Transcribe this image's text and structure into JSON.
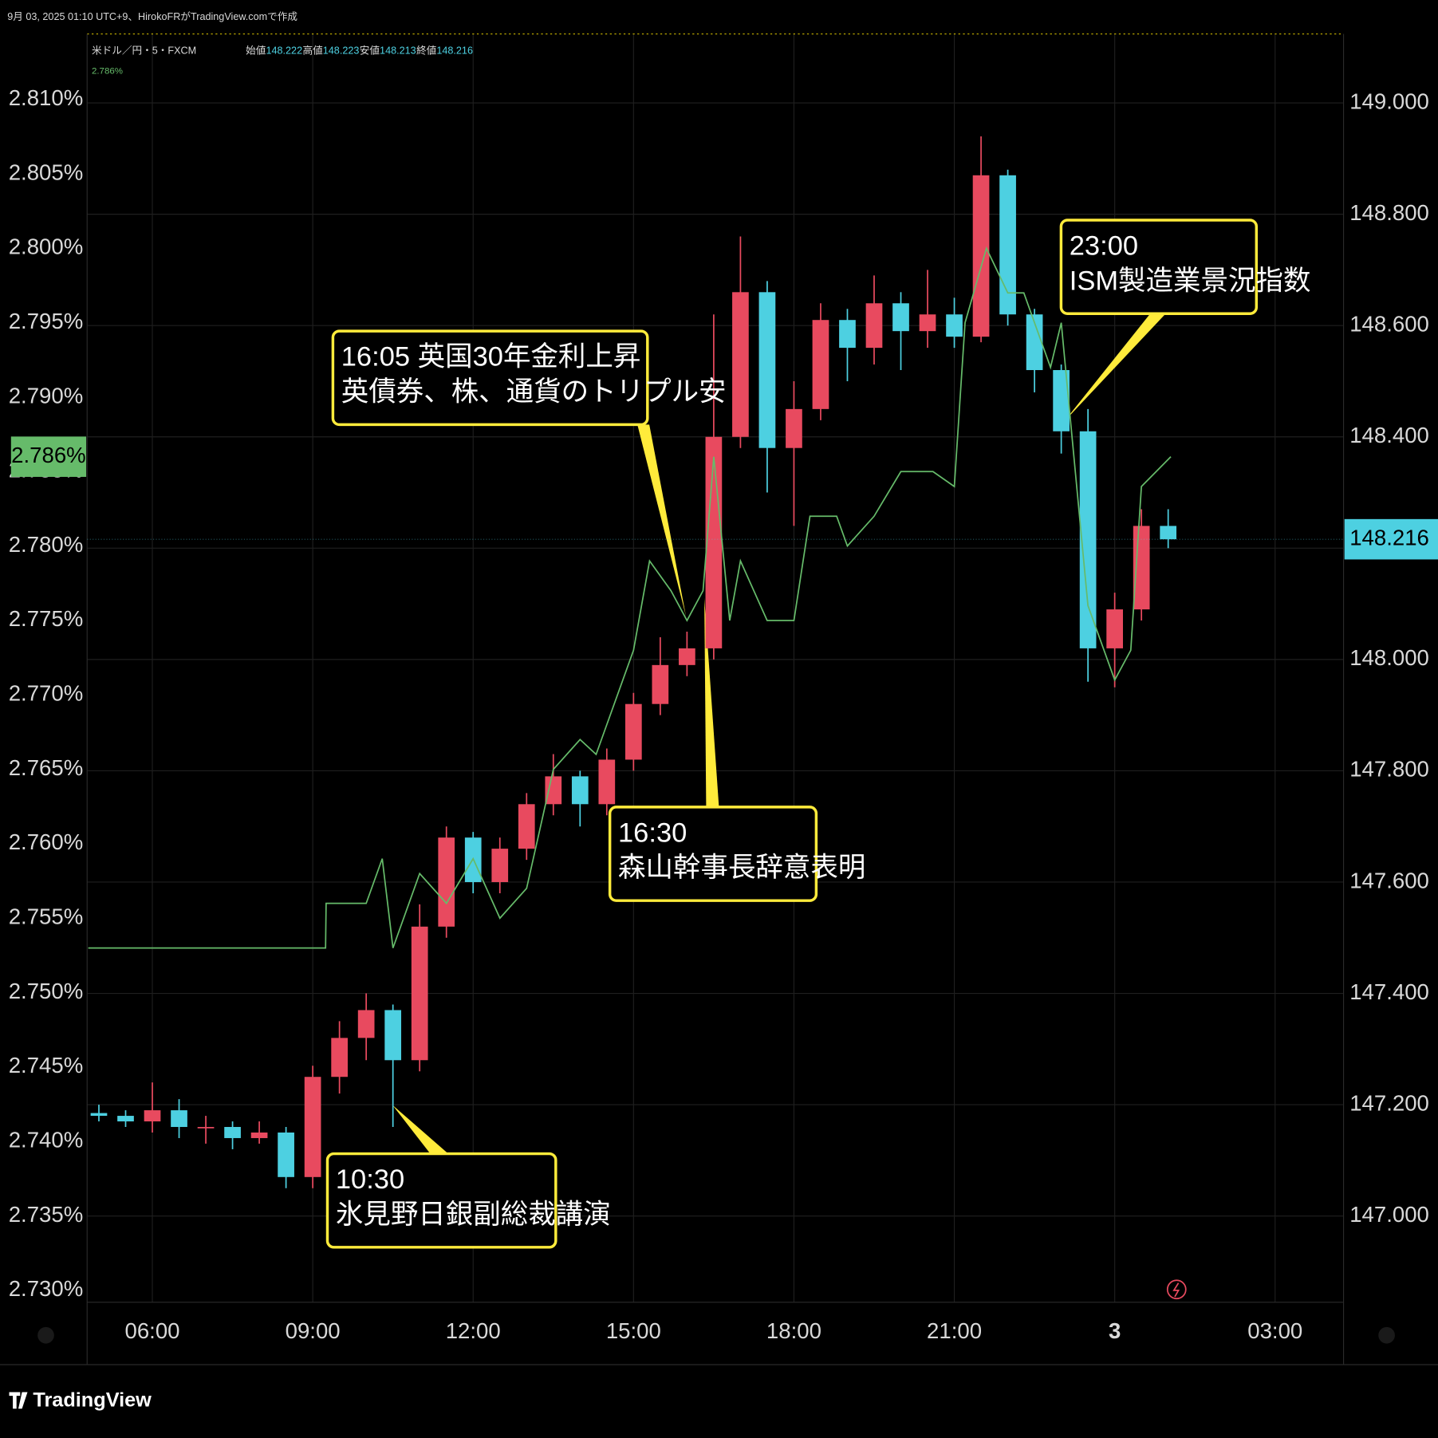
{
  "chart_data": {
    "type": "candlestick",
    "watermark": "9月 03, 2025 01:10 UTC+9、HirokoFRがTradingView.comで作成",
    "ohlc_legend": [
      {
        "label": "始値",
        "value": 148.222
      },
      {
        "label": "高値",
        "value": 148.223
      },
      {
        "label": "安値",
        "value": 148.213
      },
      {
        "label": "終値",
        "value": 148.216
      }
    ],
    "brand": "TradingView",
    "xlim": [
      4.78,
      28.28
    ],
    "xticks": [
      {
        "value": 6,
        "label": "06:00"
      },
      {
        "value": 9,
        "label": "09:00"
      },
      {
        "value": 12,
        "label": "12:00"
      },
      {
        "value": 15,
        "label": "15:00"
      },
      {
        "value": 18,
        "label": "18:00"
      },
      {
        "value": 21,
        "label": "21:00"
      },
      {
        "value": 24,
        "label": "3"
      },
      {
        "value": 27,
        "label": "03:00"
      }
    ],
    "ylim": [
      2.7292,
      2.8144
    ],
    "yticks": [
      {
        "value": 2.73,
        "label": "2.730%"
      },
      {
        "value": 2.735,
        "label": "2.735%"
      },
      {
        "value": 2.74,
        "label": "2.740%"
      },
      {
        "value": 2.745,
        "label": "2.745%"
      },
      {
        "value": 2.75,
        "label": "2.750%"
      },
      {
        "value": 2.755,
        "label": "2.755%"
      },
      {
        "value": 2.76,
        "label": "2.760%"
      },
      {
        "value": 2.765,
        "label": "2.765%"
      },
      {
        "value": 2.77,
        "label": "2.770%"
      },
      {
        "value": 2.775,
        "label": "2.775%"
      },
      {
        "value": 2.78,
        "label": "2.780%"
      },
      {
        "value": 2.785,
        "label": "2.785%"
      },
      {
        "value": 2.79,
        "label": "2.790%"
      },
      {
        "value": 2.795,
        "label": "2.795%"
      },
      {
        "value": 2.8,
        "label": "2.800%"
      },
      {
        "value": 2.805,
        "label": "2.805%"
      },
      {
        "value": 2.81,
        "label": "2.810%"
      }
    ],
    "y2lim": [
      146.845,
      149.124
    ],
    "y2ticks": [
      {
        "value": 147,
        "label": "147.000"
      },
      {
        "value": 147.2,
        "label": "147.200"
      },
      {
        "value": 147.4,
        "label": "147.400"
      },
      {
        "value": 147.6,
        "label": "147.600"
      },
      {
        "value": 147.8,
        "label": "147.800"
      },
      {
        "value": 148,
        "label": "148.000"
      },
      {
        "value": 148.2,
        "label": "148.200"
      },
      {
        "value": 148.4,
        "label": "148.400"
      },
      {
        "value": 148.6,
        "label": "148.600"
      },
      {
        "value": 148.8,
        "label": "148.800"
      },
      {
        "value": 149,
        "label": "149.000"
      }
    ],
    "grid": true,
    "series": [
      {
        "name": "米ドル／円・5・FXCM",
        "type": "candlestick",
        "axis": "y2",
        "up_color": "#e84a5f",
        "down_color": "#4dd0e1",
        "x": [
          5.0,
          5.5,
          6.0,
          6.5,
          7.0,
          7.5,
          8.0,
          8.5,
          9.0,
          9.5,
          10.0,
          10.5,
          11.0,
          11.5,
          12.0,
          12.5,
          13.0,
          13.5,
          14.0,
          14.5,
          15.0,
          15.5,
          16.0,
          16.5,
          17.0,
          17.5,
          18.0,
          18.5,
          19.0,
          19.5,
          20.0,
          20.5,
          21.0,
          21.5,
          22.0,
          22.5,
          23.0,
          23.5,
          24.0,
          24.5,
          25.0
        ],
        "open": [
          147.185,
          147.18,
          147.17,
          147.19,
          147.16,
          147.16,
          147.14,
          147.15,
          147.07,
          147.25,
          147.32,
          147.37,
          147.28,
          147.52,
          147.68,
          147.6,
          147.66,
          147.74,
          147.79,
          147.74,
          147.82,
          147.92,
          147.99,
          148.02,
          148.4,
          148.66,
          148.38,
          148.45,
          148.61,
          148.56,
          148.64,
          148.59,
          148.62,
          148.58,
          148.87,
          148.62,
          148.52,
          148.41,
          148.02,
          148.09,
          148.24
        ],
        "high": [
          147.2,
          147.19,
          147.24,
          147.21,
          147.18,
          147.17,
          147.17,
          147.16,
          147.27,
          147.35,
          147.4,
          147.38,
          147.56,
          147.7,
          147.69,
          147.68,
          147.76,
          147.83,
          147.8,
          147.84,
          147.94,
          148.04,
          148.05,
          148.62,
          148.76,
          148.68,
          148.5,
          148.64,
          148.63,
          148.69,
          148.66,
          148.7,
          148.65,
          148.94,
          148.88,
          148.63,
          148.53,
          148.45,
          148.12,
          148.27,
          148.27
        ],
        "low": [
          147.17,
          147.16,
          147.15,
          147.14,
          147.13,
          147.12,
          147.13,
          147.05,
          147.05,
          147.22,
          147.28,
          147.16,
          147.26,
          147.5,
          147.58,
          147.58,
          147.64,
          147.72,
          147.7,
          147.72,
          147.8,
          147.9,
          147.97,
          148.0,
          148.38,
          148.3,
          148.24,
          148.43,
          148.5,
          148.53,
          148.52,
          148.56,
          148.56,
          148.57,
          148.6,
          148.48,
          148.37,
          147.96,
          147.95,
          148.07,
          148.2
        ],
        "close": [
          147.18,
          147.17,
          147.19,
          147.16,
          147.16,
          147.14,
          147.15,
          147.07,
          147.25,
          147.32,
          147.37,
          147.28,
          147.52,
          147.68,
          147.6,
          147.66,
          147.74,
          147.79,
          147.74,
          147.82,
          147.92,
          147.99,
          148.02,
          148.4,
          148.66,
          148.38,
          148.45,
          148.61,
          148.56,
          148.64,
          148.59,
          148.62,
          148.58,
          148.87,
          148.62,
          148.52,
          148.41,
          148.02,
          148.09,
          148.24,
          148.216
        ],
        "last_value": 148.216,
        "last_value_label": "148.216"
      },
      {
        "type": "line",
        "axis": "y",
        "color": "#66bb6a",
        "x": [
          4.8,
          9.24,
          9.25,
          10.0,
          10.3,
          10.5,
          11.0,
          11.5,
          12.0,
          12.5,
          13.0,
          13.5,
          14.0,
          14.3,
          15.0,
          15.3,
          15.7,
          16.0,
          16.3,
          16.5,
          16.8,
          17.0,
          17.5,
          18.0,
          18.3,
          18.8,
          19.0,
          19.5,
          20.0,
          20.6,
          21.0,
          21.2,
          21.6,
          22.0,
          22.3,
          22.8,
          23.0,
          23.5,
          24.0,
          24.3,
          24.5,
          25.05
        ],
        "values": [
          2.753,
          2.753,
          2.756,
          2.756,
          2.759,
          2.753,
          2.758,
          2.756,
          2.759,
          2.755,
          2.757,
          2.765,
          2.767,
          2.766,
          2.773,
          2.779,
          2.777,
          2.775,
          2.777,
          2.786,
          2.775,
          2.779,
          2.775,
          2.775,
          2.782,
          2.782,
          2.78,
          2.782,
          2.785,
          2.785,
          2.784,
          2.795,
          2.8,
          2.797,
          2.797,
          2.792,
          2.795,
          2.776,
          2.771,
          2.773,
          2.784,
          2.786
        ],
        "last_value": 2.786,
        "last_value_label": "2.786%"
      }
    ],
    "annotations": [
      {
        "lines": [
          "16:05  英国30年金利上昇",
          "英債券、株、通貨のトリプル安"
        ]
      },
      {
        "lines": [
          "16:30",
          "森山幹事長辞意表明"
        ]
      },
      {
        "lines": [
          "23:00",
          "ISM製造業景況指数"
        ]
      },
      {
        "lines": [
          "10:30",
          "氷見野日銀副総裁講演"
        ]
      }
    ]
  }
}
